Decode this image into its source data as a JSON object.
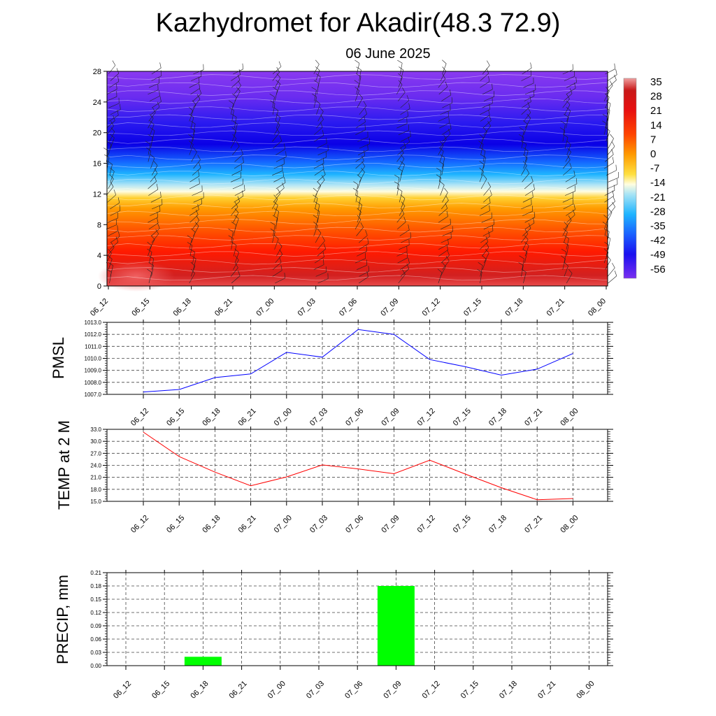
{
  "header": {
    "title": "Kazhydromet for Akadir(48.3 72.9)",
    "subtitle": "06 June 2025"
  },
  "chart_data": [
    {
      "id": "cross-section",
      "type": "heatmap",
      "title": "",
      "x_tick_labels": [
        "06_12",
        "06_15",
        "06_18",
        "06_21",
        "07_00",
        "07_03",
        "07_06",
        "07_09",
        "07_12",
        "07_15",
        "07_18",
        "07_21",
        "08_00"
      ],
      "y_ticks": [
        0,
        4,
        8,
        12,
        16,
        20,
        24,
        28
      ],
      "ylim": [
        0,
        28
      ],
      "colorbar_labels": [
        "35",
        "28",
        "21",
        "14",
        "7",
        "0",
        "-7",
        "-14",
        "-21",
        "-28",
        "-35",
        "-42",
        "-49",
        "-56"
      ],
      "colorbar_range": [
        -63,
        42
      ],
      "colors": {
        "hot": "#d22020",
        "red": "#ff1a00",
        "orange": "#ff8c00",
        "yellow": "#fff25a",
        "pale": "#fffde0",
        "lightblue": "#b4e6f5",
        "cyan": "#1eb4ff",
        "blue": "#1432ff",
        "deepblue": "#0a00e6",
        "purple": "#7a2ef0"
      },
      "wind_barbs": true
    },
    {
      "id": "pmsl",
      "type": "line",
      "ylabel": "PMSL",
      "categories": [
        "06_12",
        "06_15",
        "06_18",
        "06_21",
        "07_00",
        "07_03",
        "07_06",
        "07_09",
        "07_12",
        "07_15",
        "07_18",
        "07_21",
        "08_00"
      ],
      "values": [
        1007.2,
        1007.4,
        1008.4,
        1008.7,
        1010.5,
        1010.1,
        1012.4,
        1012.0,
        1009.9,
        1009.3,
        1008.6,
        1009.1,
        1010.4
      ],
      "ylim": [
        1007.0,
        1013.0
      ],
      "y_ticks": [
        "1007.0",
        "1008.0",
        "1009.0",
        "1010.0",
        "1011.0",
        "1012.0",
        "1013.0"
      ],
      "line_color": "#0000ff",
      "grid": true
    },
    {
      "id": "temp2m",
      "type": "line",
      "ylabel": "TEMP at 2 M",
      "categories": [
        "06_12",
        "06_15",
        "06_18",
        "06_21",
        "07_00",
        "07_03",
        "07_06",
        "07_09",
        "07_12",
        "07_15",
        "07_18",
        "07_21",
        "08_00"
      ],
      "values": [
        32.3,
        26.2,
        22.3,
        18.9,
        21.1,
        24.1,
        23.1,
        21.9,
        25.3,
        21.8,
        18.4,
        15.4,
        15.7
      ],
      "ylim": [
        15.0,
        33.0
      ],
      "y_ticks": [
        "15.0",
        "18.0",
        "21.0",
        "24.0",
        "27.0",
        "30.0",
        "33.0"
      ],
      "line_color": "#ff0000",
      "grid": true
    },
    {
      "id": "precip",
      "type": "bar",
      "ylabel": "PRECIP, mm",
      "categories": [
        "06_12",
        "06_15",
        "06_18",
        "06_21",
        "07_00",
        "07_03",
        "07_06",
        "07_09",
        "07_12",
        "07_15",
        "07_18",
        "07_21",
        "08_00"
      ],
      "values": [
        0,
        0,
        0.02,
        0,
        0,
        0,
        0,
        0.18,
        0,
        0,
        0,
        0,
        0
      ],
      "ylim": [
        0,
        0.21
      ],
      "y_ticks": [
        "0.00",
        "0.03",
        "0.06",
        "0.09",
        "0.12",
        "0.15",
        "0.18",
        "0.21"
      ],
      "bar_color": "#00ff00",
      "grid": true
    }
  ]
}
